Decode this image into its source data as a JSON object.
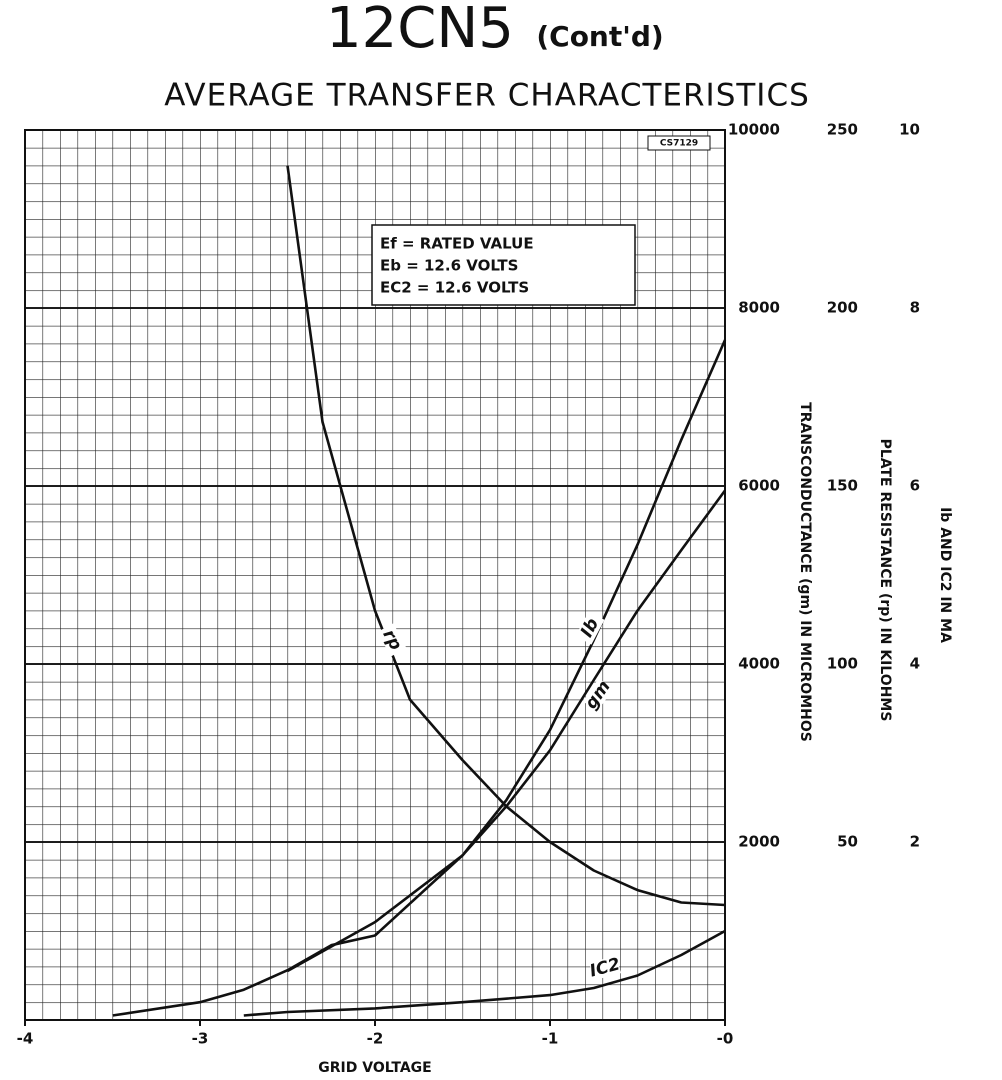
{
  "chart_data": {
    "type": "line",
    "title": "12CN5",
    "title_note": "(Cont'd)",
    "subtitle": "AVERAGE TRANSFER CHARACTERISTICS",
    "code": "CS7129",
    "xlabel": "GRID VOLTAGE",
    "ylabel": "TRANSCONDUCTANCE (gm) IN MICROMHOS",
    "y2label": "PLATE RESISTANCE (rp) IN KILOHMS",
    "y3label": "Ib AND IC2 IN MA",
    "conditions": [
      "Ef = RATED VALUE",
      "Eb = 12.6 VOLTS",
      "EC2 = 12.6 VOLTS"
    ],
    "xlim": [
      -4,
      0
    ],
    "xticks": [
      -4,
      -3,
      -2,
      -1,
      {
        "value": 0,
        "label": "-0"
      }
    ],
    "ylim": [
      0,
      10000
    ],
    "yticks": [
      2000,
      4000,
      6000,
      8000,
      10000
    ],
    "y2lim": [
      0,
      250
    ],
    "y2ticks": [
      50,
      100,
      150,
      200,
      250
    ],
    "y3lim": [
      0,
      10
    ],
    "y3ticks": [
      2,
      4,
      6,
      8,
      10
    ],
    "grid": true,
    "series": [
      {
        "name": "rp",
        "axis": "y2",
        "color": "#111111",
        "x": [
          -2.5,
          -2.3,
          -2.0,
          -1.8,
          -1.5,
          -1.25,
          -1.0,
          -0.75,
          -0.5,
          -0.25,
          0
        ],
        "values": [
          240,
          168,
          115,
          90,
          73,
          60,
          50,
          42,
          36.5,
          33,
          32.3
        ]
      },
      {
        "name": "Ib",
        "axis": "y3",
        "color": "#111111",
        "x": [
          -2.5,
          -2.0,
          -1.5,
          -1.25,
          -1.0,
          -0.75,
          -0.5,
          -0.25,
          0
        ],
        "values": [
          0.55,
          1.1,
          1.85,
          2.47,
          3.26,
          4.27,
          5.34,
          6.52,
          7.64
        ]
      },
      {
        "name": "gm",
        "axis": "y",
        "color": "#111111",
        "x": [
          -3.5,
          -3.0,
          -2.75,
          -2.5,
          -2.25,
          -2.0,
          -1.75,
          -1.5,
          -1.25,
          -1.0,
          -0.75,
          -0.5,
          -0.25,
          0
        ],
        "values": [
          50,
          200,
          340,
          560,
          840,
          950,
          1400,
          1850,
          2400,
          3030,
          3820,
          4600,
          5280,
          5950
        ]
      },
      {
        "name": "IC2",
        "axis": "y3",
        "color": "#111111",
        "x": [
          -2.75,
          -2.5,
          -2.0,
          -1.5,
          -1.0,
          -0.75,
          -0.5,
          -0.25,
          0
        ],
        "values": [
          0.05,
          0.09,
          0.13,
          0.2,
          0.28,
          0.36,
          0.5,
          0.73,
          1.0
        ]
      }
    ]
  }
}
